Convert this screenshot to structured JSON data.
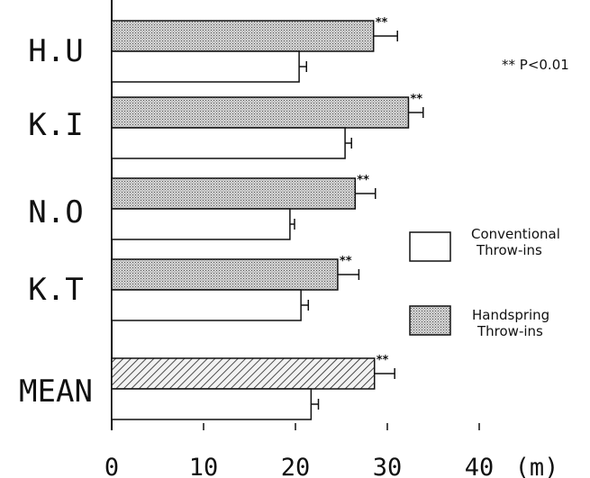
{
  "chart_data": {
    "type": "bar",
    "orientation": "horizontal",
    "categories": [
      "H.U",
      "K.I",
      "N.O",
      "K.T",
      "MEAN"
    ],
    "series": [
      {
        "name": "Handspring Throw-ins",
        "values": [
          28.5,
          32.3,
          26.5,
          24.6,
          28.6
        ],
        "errors": [
          2.6,
          1.6,
          2.2,
          2.3,
          2.2
        ],
        "fill": "dotted",
        "mean_fill": "hatched"
      },
      {
        "name": "Conventional Throw-ins",
        "values": [
          20.4,
          25.4,
          19.4,
          20.6,
          21.7
        ],
        "errors": [
          0.8,
          0.7,
          0.5,
          0.8,
          0.8
        ],
        "fill": "white"
      }
    ],
    "significance_markers": [
      "**",
      "**",
      "**",
      "**",
      "**"
    ],
    "annotation": "** P<0.01",
    "x_ticks": [
      "0",
      "10",
      "20",
      "30",
      "40"
    ],
    "x_unit_label": "(m)",
    "xlim": [
      0,
      45
    ],
    "legend": {
      "entries": [
        {
          "lines": [
            "Conventional",
            "Throw-ins"
          ]
        },
        {
          "lines": [
            "Handspring",
            "Throw-ins"
          ]
        }
      ],
      "placement": "right"
    },
    "grid": false
  },
  "colors": {
    "ink": "#111111",
    "bar_white": "#ffffff",
    "dot": "#555555"
  }
}
